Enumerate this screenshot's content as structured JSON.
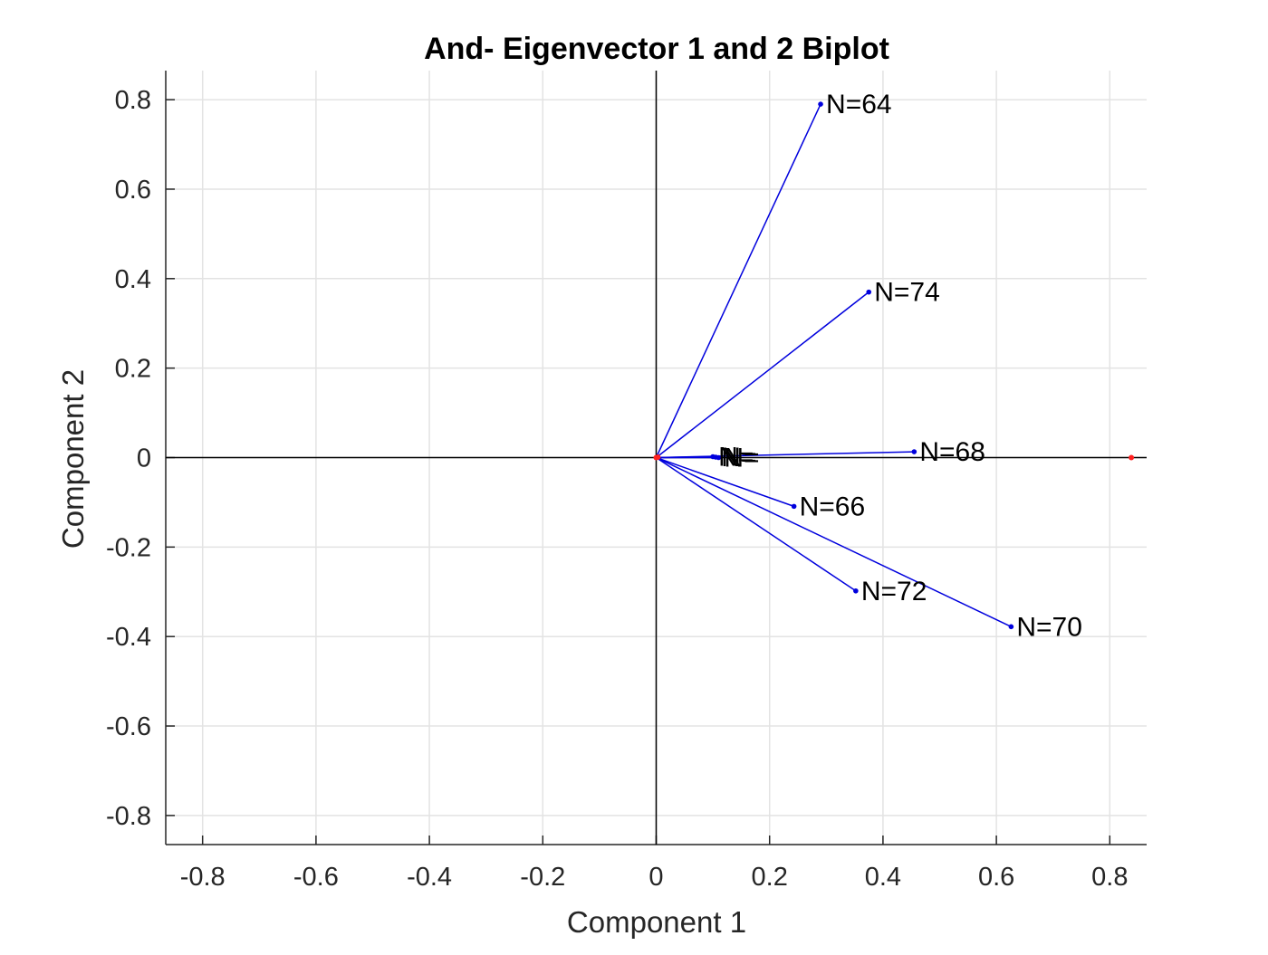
{
  "chart_data": {
    "type": "scatter",
    "subtype": "biplot",
    "title": "And- Eigenvector 1 and 2 Biplot",
    "xlabel": "Component 1",
    "ylabel": "Component 2",
    "xlim": [
      -0.865,
      0.865
    ],
    "ylim": [
      -0.865,
      0.865
    ],
    "xticks": [
      -0.8,
      -0.6,
      -0.4,
      -0.2,
      0,
      0.2,
      0.4,
      0.6,
      0.8
    ],
    "yticks": [
      -0.8,
      -0.6,
      -0.4,
      -0.2,
      0,
      0.2,
      0.4,
      0.6,
      0.8
    ],
    "grid": true,
    "vector_color": "#0000dd",
    "observation_color": "#ff2020",
    "axis_color": "#000000",
    "vectors": [
      {
        "label": "N=64",
        "x": 0.29,
        "y": 0.79
      },
      {
        "label": "N=74",
        "x": 0.375,
        "y": 0.37
      },
      {
        "label": "N=68",
        "x": 0.455,
        "y": 0.013
      },
      {
        "label": "N=66",
        "x": 0.243,
        "y": -0.109
      },
      {
        "label": "N=72",
        "x": 0.352,
        "y": -0.298
      },
      {
        "label": "N=70",
        "x": 0.626,
        "y": -0.378
      },
      {
        "label": "N=",
        "x": 0.1,
        "y": 0.002
      },
      {
        "label": "N=",
        "x": 0.105,
        "y": 0.001
      },
      {
        "label": "N=",
        "x": 0.11,
        "y": 0.0
      }
    ],
    "observations": [
      {
        "x": 0.0,
        "y": 0.0
      },
      {
        "x": 0.003,
        "y": 0.001
      },
      {
        "x": 0.838,
        "y": 0.0
      }
    ]
  }
}
